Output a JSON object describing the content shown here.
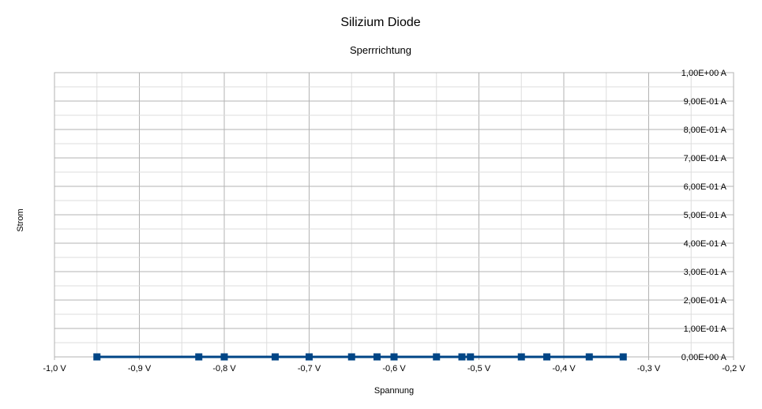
{
  "chart_data": {
    "type": "scatter",
    "title": "Silizium Diode",
    "subtitle": "Sperrrichtung",
    "xlabel": "Spannung",
    "ylabel": "Strom",
    "xlim": [
      -1.0,
      -0.2
    ],
    "ylim": [
      0,
      1.0
    ],
    "x_tick_labels": [
      "-1,0 V",
      "-0,9 V",
      "-0,8 V",
      "-0,7 V",
      "-0,6 V",
      "-0,5 V",
      "-0,4 V",
      "-0,3 V",
      "-0,2 V"
    ],
    "y_tick_labels": [
      "0,00E+00 A",
      "1,00E-01 A",
      "2,00E-01 A",
      "3,00E-01 A",
      "4,00E-01 A",
      "5,00E-01 A",
      "6,00E-01 A",
      "7,00E-01 A",
      "8,00E-01 A",
      "9,00E-01 A",
      "1,00E+00 A"
    ],
    "y_axis_position": "right",
    "grid": true,
    "series_color": "#004586",
    "points": {
      "x": [
        -0.95,
        -0.83,
        -0.8,
        -0.74,
        -0.7,
        -0.65,
        -0.62,
        -0.6,
        -0.55,
        -0.52,
        -0.51,
        -0.45,
        -0.42,
        -0.37,
        -0.33
      ],
      "y": [
        0,
        0,
        0,
        0,
        0,
        0,
        0,
        0,
        0,
        0,
        0,
        0,
        0,
        0,
        0
      ]
    }
  }
}
